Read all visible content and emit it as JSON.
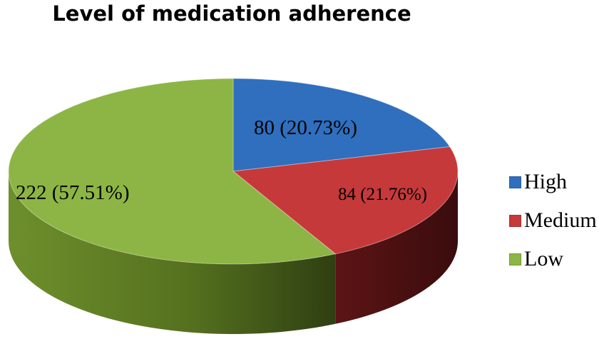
{
  "chart_data": {
    "type": "pie",
    "title": "Level of medication adherence",
    "categories": [
      "High",
      "Medium",
      "Low"
    ],
    "values": [
      80,
      84,
      222
    ],
    "percentages": [
      20.73,
      21.76,
      57.51
    ],
    "data_labels": [
      "80 (20.73%)",
      "84 (21.76%)",
      "222 (57.51%)"
    ],
    "colors": [
      "#2f6fbd",
      "#c6393a",
      "#8db545"
    ],
    "side_colors": [
      "#1e4a80",
      "#6a1718",
      "#55711f"
    ],
    "legend_position": "right",
    "style": "3d"
  }
}
